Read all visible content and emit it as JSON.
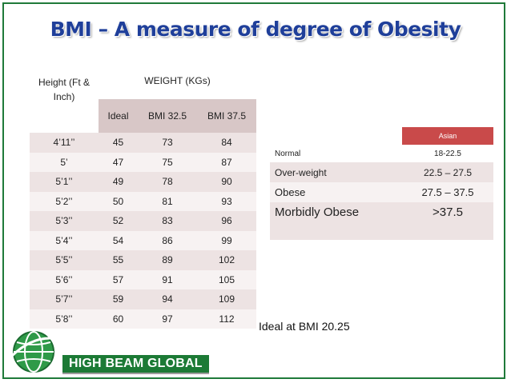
{
  "slide": {
    "title": "BMI – A measure of degree of Obesity"
  },
  "bmi_table": {
    "height_header": "Height (Ft & Inch)",
    "weight_header": "WEIGHT (KGs)",
    "sub_headers": [
      "Ideal",
      "BMI 32.5",
      "BMI 37.5"
    ],
    "rows": [
      {
        "height": "4’11’’",
        "ideal": "45",
        "bmi325": "73",
        "bmi375": "84"
      },
      {
        "height": "5’",
        "ideal": "47",
        "bmi325": "75",
        "bmi375": "87"
      },
      {
        "height": "5’1’’",
        "ideal": "49",
        "bmi325": "78",
        "bmi375": "90"
      },
      {
        "height": "5’2’’",
        "ideal": "50",
        "bmi325": "81",
        "bmi375": "93"
      },
      {
        "height": "5’3’’",
        "ideal": "52",
        "bmi325": "83",
        "bmi375": "96"
      },
      {
        "height": "5’4’’",
        "ideal": "54",
        "bmi325": "86",
        "bmi375": "99"
      },
      {
        "height": "5’5’’",
        "ideal": "55",
        "bmi325": "89",
        "bmi375": "102"
      },
      {
        "height": "5’6’’",
        "ideal": "57",
        "bmi325": "91",
        "bmi375": "105"
      },
      {
        "height": "5’7’’",
        "ideal": "59",
        "bmi325": "94",
        "bmi375": "109"
      },
      {
        "height": "5’8’’",
        "ideal": "60",
        "bmi325": "97",
        "bmi375": "112"
      }
    ]
  },
  "class_table": {
    "header_right": "Asian",
    "rows": [
      {
        "label": "Normal",
        "value": "18-22.5"
      },
      {
        "label": "Over-weight",
        "value": "22.5 – 27.5"
      },
      {
        "label": "Obese",
        "value": "27.5 – 37.5"
      },
      {
        "label": "Morbidly Obese",
        "value": ">37.5"
      }
    ]
  },
  "note": "Ideal at BMI 20.25",
  "logo": {
    "text": "HIGH BEAM GLOBAL",
    "icon": "globe-icon"
  },
  "colors": {
    "title": "#1f3f9a",
    "frame": "#1f7a3a",
    "header_accent": "#c94a4a",
    "brand_green": "#1c7a35",
    "row_shade": "#ede3e3"
  }
}
